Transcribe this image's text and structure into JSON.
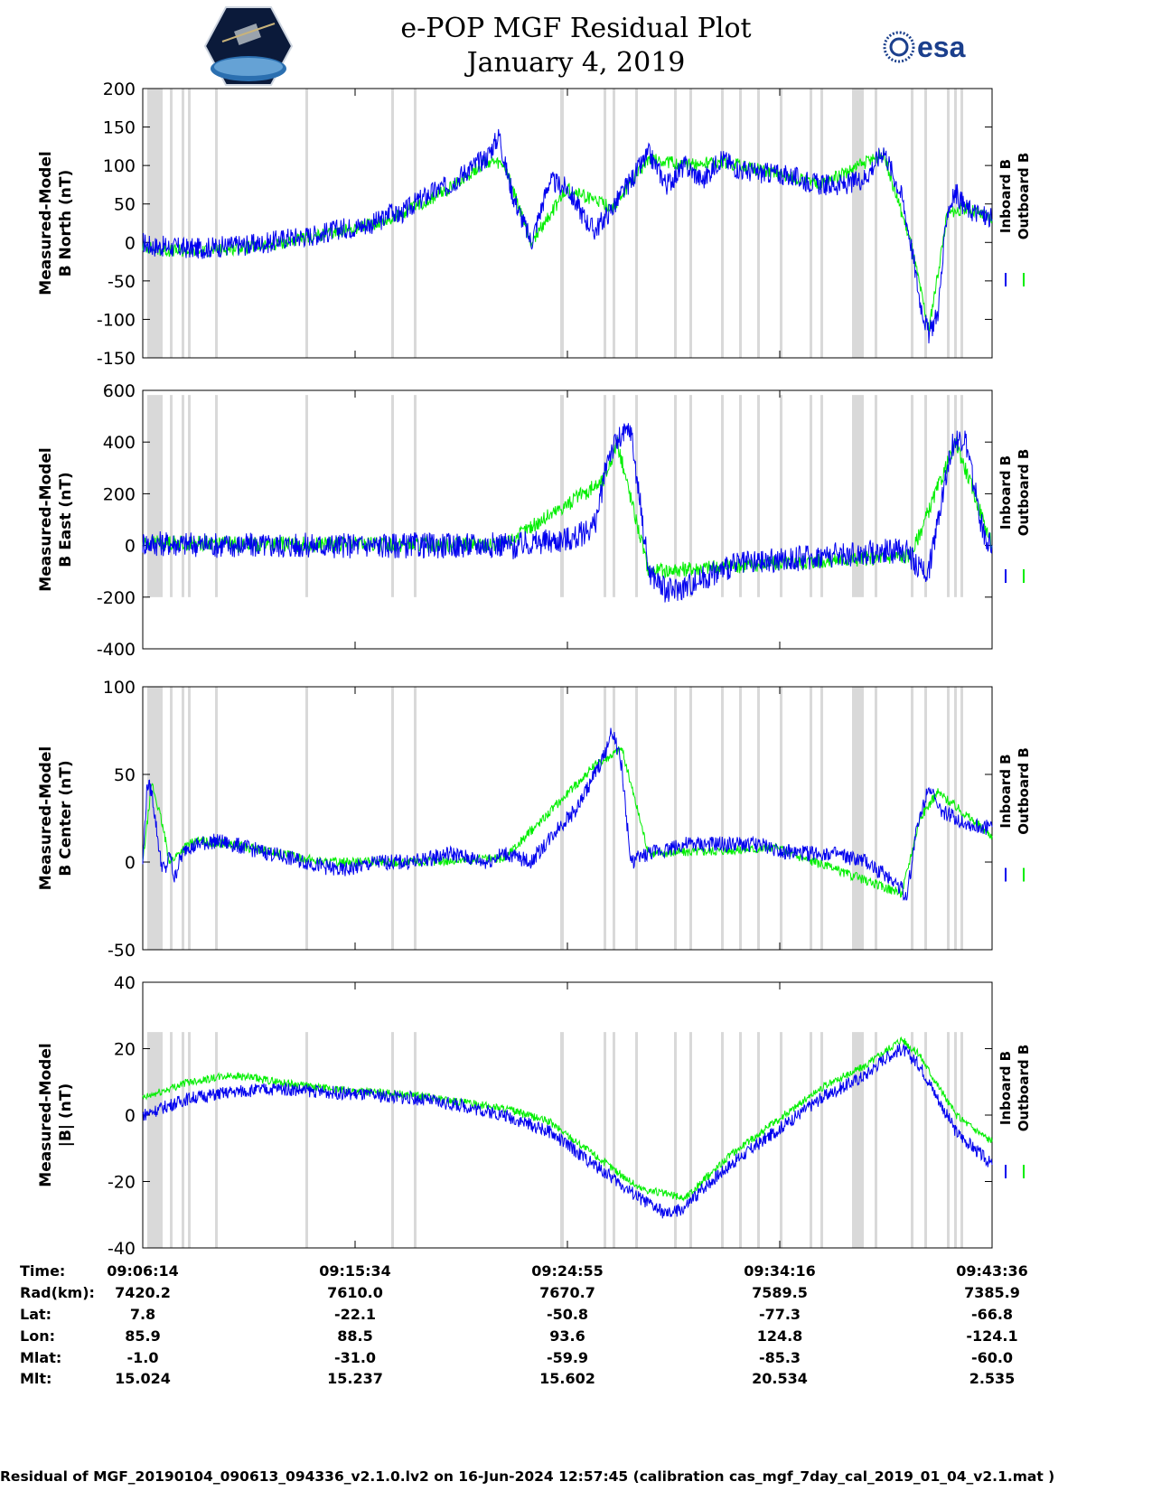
{
  "header": {
    "title": "e-POP MGF Residual Plot",
    "date": "January 4, 2019",
    "left_logo": "cassiope-mission-logo",
    "right_logo": "esa-logo",
    "right_logo_text": "esa"
  },
  "colors": {
    "inboard": "#0000ee",
    "outboard": "#00ee00",
    "gap_shading": "#d9d9d9"
  },
  "chart_data": [
    {
      "type": "line",
      "ylabel": [
        "Measured-Model",
        "B North (nT)"
      ],
      "ylim": [
        -150,
        200
      ],
      "yticks": [
        200,
        150,
        100,
        50,
        0,
        -50,
        -100,
        -150
      ],
      "legend": [
        "Inboard B",
        "Outboard B"
      ],
      "series": [
        {
          "name": "Inboard B",
          "x": [
            0,
            10,
            20,
            40,
            60,
            80,
            100,
            120,
            140,
            160,
            180,
            200,
            210,
            220,
            235,
            255,
            270,
            275,
            280,
            290,
            300,
            320,
            340,
            360,
            380,
            395,
            400,
            410,
            430,
            450,
            470,
            490,
            500,
            520,
            540,
            560,
            580,
            600,
            620,
            640,
            660,
            680,
            700,
            720,
            750,
            780,
            800,
            820,
            840,
            850,
            860,
            870,
            880,
            885,
            890,
            900,
            910,
            920,
            930,
            940
          ],
          "values": [
            0,
            -5,
            -5,
            -7,
            -8,
            -6,
            -4,
            -3,
            0,
            6,
            8,
            12,
            15,
            18,
            20,
            25,
            32,
            50,
            34,
            40,
            50,
            65,
            75,
            95,
            110,
            140,
            105,
            60,
            0,
            80,
            70,
            30,
            15,
            45,
            80,
            115,
            75,
            100,
            80,
            110,
            95,
            90,
            90,
            85,
            75,
            75,
            85,
            120,
            60,
            0,
            -75,
            -120,
            -90,
            -30,
            40,
            65,
            45,
            40,
            35,
            30
          ]
        },
        {
          "name": "Outboard B",
          "x": [
            0,
            20,
            60,
            100,
            140,
            180,
            220,
            270,
            300,
            340,
            380,
            400,
            430,
            470,
            520,
            560,
            600,
            640,
            700,
            750,
            820,
            850,
            870,
            890,
            910,
            940
          ],
          "values": [
            -5,
            -10,
            -12,
            -8,
            -4,
            5,
            15,
            28,
            45,
            70,
            105,
            100,
            0,
            70,
            45,
            110,
            100,
            105,
            90,
            75,
            115,
            0,
            -115,
            35,
            45,
            30
          ]
        }
      ]
    },
    {
      "type": "line",
      "ylabel": [
        "Measured-Model",
        "B East (nT)"
      ],
      "ylim": [
        -400,
        600
      ],
      "yticks": [
        600,
        400,
        200,
        0,
        -200,
        -400
      ],
      "legend": [
        "Inboard B",
        "Outboard B"
      ],
      "series": [
        {
          "name": "Inboard B",
          "x": [
            0,
            50,
            100,
            150,
            200,
            250,
            300,
            350,
            400,
            405,
            410,
            420,
            450,
            480,
            500,
            505,
            510,
            515,
            525,
            540,
            560,
            580,
            600,
            650,
            700,
            750,
            800,
            830,
            845,
            850,
            855,
            870,
            885,
            895,
            900,
            910,
            930,
            940
          ],
          "values": [
            10,
            5,
            0,
            0,
            0,
            0,
            0,
            0,
            5,
            3,
            -10,
            5,
            15,
            30,
            80,
            150,
            250,
            350,
            400,
            450,
            -100,
            -180,
            -160,
            -80,
            -60,
            -40,
            -30,
            -20,
            -20,
            -40,
            -80,
            -100,
            200,
            380,
            400,
            410,
            50,
            0
          ]
        },
        {
          "name": "Outboard B",
          "x": [
            0,
            20,
            40,
            60,
            80,
            100,
            400,
            510,
            525,
            560,
            650,
            850,
            900,
            940
          ],
          "values": [
            8,
            12,
            10,
            8,
            10,
            5,
            3,
            250,
            400,
            -100,
            -80,
            -40,
            400,
            0
          ]
        }
      ]
    },
    {
      "type": "line",
      "ylabel": [
        "Measured-Model",
        "B Center (nT)"
      ],
      "ylim": [
        -50,
        100
      ],
      "yticks": [
        100,
        50,
        0,
        -50
      ],
      "legend": [
        "Inboard B",
        "Outboard B"
      ],
      "series": [
        {
          "name": "Inboard B",
          "x": [
            0,
            5,
            10,
            15,
            20,
            25,
            30,
            35,
            40,
            45,
            50,
            55,
            60,
            80,
            100,
            140,
            180,
            220,
            260,
            300,
            340,
            380,
            400,
            430,
            460,
            480,
            490,
            500,
            510,
            520,
            530,
            540,
            560,
            600,
            640,
            680,
            720,
            760,
            800,
            830,
            840,
            845,
            850,
            855,
            860,
            870,
            880,
            900,
            920,
            940
          ],
          "values": [
            0,
            45,
            40,
            20,
            0,
            -5,
            5,
            -10,
            0,
            5,
            10,
            8,
            10,
            12,
            10,
            5,
            0,
            -5,
            0,
            0,
            5,
            0,
            5,
            0,
            20,
            30,
            40,
            50,
            60,
            75,
            55,
            0,
            5,
            10,
            10,
            10,
            5,
            5,
            0,
            -10,
            -15,
            -20,
            -5,
            15,
            25,
            45,
            30,
            25,
            20,
            20
          ]
        },
        {
          "name": "Outboard B",
          "x": [
            0,
            10,
            20,
            30,
            40,
            50,
            60,
            100,
            200,
            300,
            400,
            500,
            530,
            560,
            700,
            840,
            860,
            880,
            940
          ],
          "values": [
            0,
            45,
            25,
            0,
            5,
            10,
            12,
            10,
            0,
            0,
            2,
            55,
            65,
            5,
            8,
            -18,
            25,
            40,
            15
          ]
        }
      ]
    },
    {
      "type": "line",
      "ylabel": [
        "Measured-Model",
        "|B| (nT)"
      ],
      "ylim": [
        -40,
        40
      ],
      "yticks": [
        40,
        20,
        0,
        -20,
        -40
      ],
      "legend": [
        "Inboard B",
        "Outboard B"
      ],
      "series": [
        {
          "name": "Inboard B",
          "x": [
            0,
            50,
            100,
            150,
            200,
            250,
            300,
            350,
            400,
            450,
            500,
            550,
            580,
            600,
            620,
            650,
            700,
            750,
            800,
            820,
            840,
            860,
            880,
            900,
            920,
            940
          ],
          "values": [
            0,
            5,
            7,
            8,
            7,
            6,
            5,
            3,
            0,
            -5,
            -15,
            -25,
            -30,
            -28,
            -22,
            -15,
            -5,
            5,
            12,
            17,
            20,
            15,
            5,
            -5,
            -10,
            -15
          ]
        },
        {
          "name": "Outboard B",
          "x": [
            0,
            50,
            100,
            200,
            300,
            400,
            450,
            500,
            550,
            600,
            650,
            700,
            750,
            800,
            840,
            860,
            900,
            940
          ],
          "values": [
            5,
            10,
            12,
            8,
            6,
            2,
            -2,
            -12,
            -22,
            -25,
            -12,
            -2,
            8,
            15,
            23,
            18,
            0,
            -8
          ]
        }
      ]
    }
  ],
  "gaps": [
    {
      "from": 5,
      "to": 22
    },
    {
      "from": 30,
      "to": 33
    },
    {
      "from": 43,
      "to": 46
    },
    {
      "from": 50,
      "to": 53
    },
    {
      "from": 80,
      "to": 83
    },
    {
      "from": 180,
      "to": 183
    },
    {
      "from": 275,
      "to": 278
    },
    {
      "from": 300,
      "to": 303
    },
    {
      "from": 462,
      "to": 466
    },
    {
      "from": 510,
      "to": 513
    },
    {
      "from": 520,
      "to": 523
    },
    {
      "from": 545,
      "to": 548
    },
    {
      "from": 588,
      "to": 591
    },
    {
      "from": 605,
      "to": 608
    },
    {
      "from": 640,
      "to": 643
    },
    {
      "from": 660,
      "to": 663
    },
    {
      "from": 680,
      "to": 683
    },
    {
      "from": 705,
      "to": 708
    },
    {
      "from": 738,
      "to": 741
    },
    {
      "from": 750,
      "to": 753
    },
    {
      "from": 785,
      "to": 798
    },
    {
      "from": 810,
      "to": 813
    },
    {
      "from": 850,
      "to": 853
    },
    {
      "from": 865,
      "to": 868
    },
    {
      "from": 890,
      "to": 893
    },
    {
      "from": 898,
      "to": 901
    },
    {
      "from": 905,
      "to": 908
    }
  ],
  "xlim": [
    0,
    940
  ],
  "x_tick_positions": [
    0,
    235,
    470,
    705,
    940
  ],
  "ephemeris": {
    "labels": [
      "Time:",
      "Rad(km):",
      "Lat:",
      "Lon:",
      "Mlat:",
      "Mlt:"
    ],
    "columns": [
      [
        "09:06:14",
        "7420.2",
        "7.8",
        "85.9",
        "-1.0",
        "15.024"
      ],
      [
        "09:15:34",
        "7610.0",
        "-22.1",
        "88.5",
        "-31.0",
        "15.237"
      ],
      [
        "09:24:55",
        "7670.7",
        "-50.8",
        "93.6",
        "-59.9",
        "15.602"
      ],
      [
        "09:34:16",
        "7589.5",
        "-77.3",
        "124.8",
        "-85.3",
        "20.534"
      ],
      [
        "09:43:36",
        "7385.9",
        "-66.8",
        "-124.1",
        "-60.0",
        "2.535"
      ]
    ]
  },
  "footer": "Residual of MGF_20190104_090613_094336_v2.1.0.lv2 on 16-Jun-2024 12:57:45 (calibration cas_mgf_7day_cal_2019_01_04_v2.1.mat )"
}
